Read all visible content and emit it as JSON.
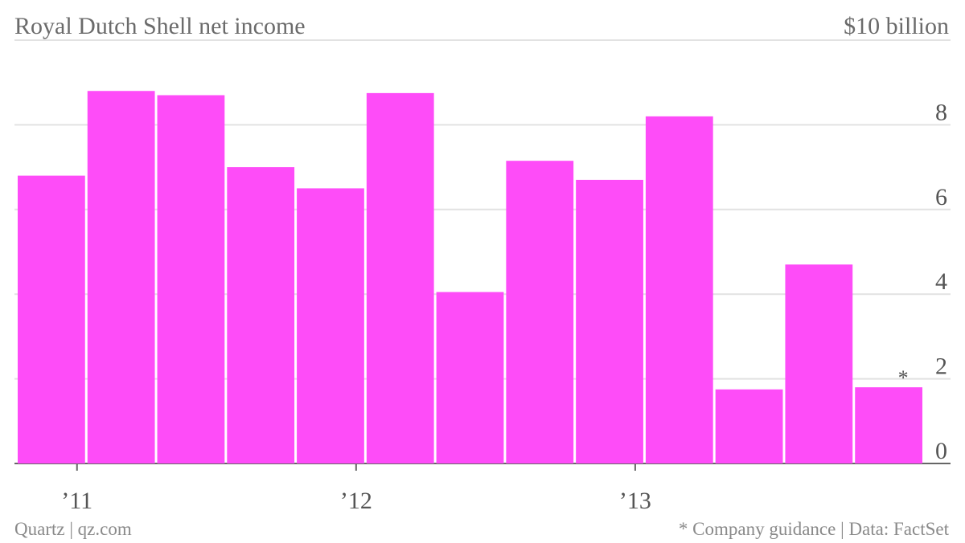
{
  "chart_data": {
    "type": "bar",
    "title": "Royal Dutch Shell net income",
    "unit_label": "$10 billion",
    "categories": [
      "Q1 '11",
      "Q2 '11",
      "Q3 '11",
      "Q4 '11",
      "Q1 '12",
      "Q2 '12",
      "Q3 '12",
      "Q4 '12",
      "Q1 '13",
      "Q2 '13",
      "Q3 '13",
      "Q4 '13",
      "Q1 '14"
    ],
    "values": [
      6.8,
      8.8,
      8.7,
      7.0,
      6.5,
      8.75,
      4.05,
      7.15,
      6.7,
      8.2,
      1.75,
      4.7,
      1.8
    ],
    "annotations": [
      {
        "category_index": 12,
        "text": "*"
      }
    ],
    "ylim": [
      0,
      10
    ],
    "yticks": [
      0,
      2,
      4,
      6,
      8
    ],
    "xtick_labels": [
      "’11",
      "’12",
      "’13"
    ],
    "xtick_category_index": [
      0,
      4,
      8
    ],
    "bar_color": "#fe4cf8",
    "grid": true,
    "y_axis_side": "right"
  },
  "footer": {
    "source_left": "Quartz | qz.com",
    "source_right": "* Company guidance | Data: FactSet"
  }
}
